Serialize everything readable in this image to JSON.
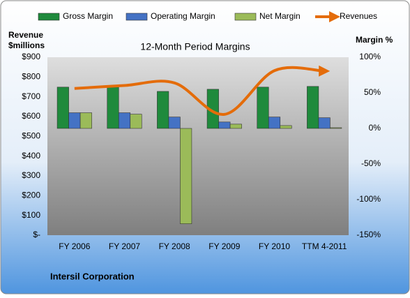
{
  "chart_data": {
    "type": "combo",
    "title": "12-Month Period Margins",
    "ylabel": [
      "Revenue",
      "$millions"
    ],
    "y2label": "Margin %",
    "footer": "Intersil Corporation",
    "categories": [
      "FY 2006",
      "FY 2007",
      "FY 2008",
      "FY 2009",
      "FY 2010",
      "TTM 4-2011"
    ],
    "series": [
      {
        "name": "Gross Margin",
        "color": "#1f8a3c",
        "type": "bar",
        "axis": "y2",
        "values": [
          58,
          58,
          52,
          55,
          58,
          59
        ]
      },
      {
        "name": "Operating Margin",
        "color": "#4472c4",
        "type": "bar",
        "axis": "y2",
        "values": [
          22,
          22,
          16,
          9,
          16,
          15
        ]
      },
      {
        "name": "Net Margin",
        "color": "#9bbb59",
        "type": "bar",
        "axis": "y2",
        "values": [
          22,
          20,
          -134,
          6,
          4,
          1
        ]
      },
      {
        "name": "Revenues",
        "color": "#e46c0a",
        "type": "line",
        "values": [
          742,
          757,
          770,
          611,
          832,
          830
        ]
      }
    ],
    "ylim": [
      0,
      900
    ],
    "yticks": [
      {
        "value": 0,
        "label": "$-"
      },
      {
        "value": 100,
        "label": "$100"
      },
      {
        "value": 200,
        "label": "$200"
      },
      {
        "value": 300,
        "label": "$300"
      },
      {
        "value": 400,
        "label": "$400"
      },
      {
        "value": 500,
        "label": "$500"
      },
      {
        "value": 600,
        "label": "$600"
      },
      {
        "value": 700,
        "label": "$700"
      },
      {
        "value": 800,
        "label": "$800"
      },
      {
        "value": 900,
        "label": "$900"
      }
    ],
    "y2lim": [
      -150,
      100
    ],
    "y2ticks": [
      {
        "value": -150,
        "label": "-150%"
      },
      {
        "value": -100,
        "label": "-100%"
      },
      {
        "value": -50,
        "label": "-50%"
      },
      {
        "value": 0,
        "label": "0%"
      },
      {
        "value": 50,
        "label": "50%"
      },
      {
        "value": 100,
        "label": "100%"
      }
    ]
  }
}
